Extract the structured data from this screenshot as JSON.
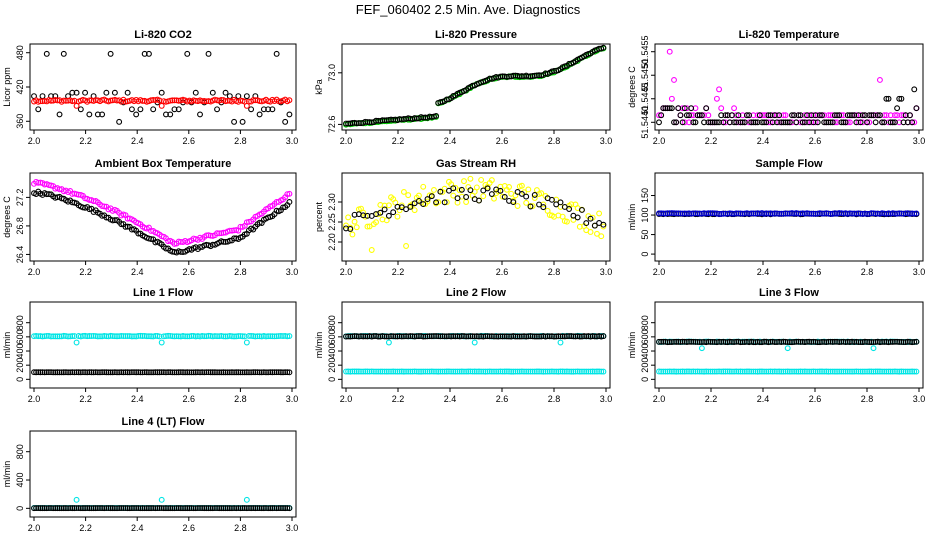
{
  "title": "FEF_060402  2.5 Min. Ave. Diagnostics",
  "chart_data": [
    {
      "type": "scatter",
      "title": "Li-820 CO2",
      "ylabel": "Licor ppm",
      "xlim": [
        2.0,
        3.0
      ],
      "ylim": [
        350,
        490
      ],
      "xticks": [
        "2.0",
        "2.2",
        "2.4",
        "2.6",
        "2.8",
        "3.0"
      ],
      "yticks": [
        "360",
        "420",
        "480"
      ],
      "series": [
        {
          "name": "main",
          "color": "#000000",
          "pattern": "co2_black"
        },
        {
          "name": "alt",
          "color": "#ff0000",
          "pattern": "co2_red"
        }
      ]
    },
    {
      "type": "scatter",
      "title": "Li-820 Pressure",
      "ylabel": "kPa",
      "xlim": [
        2.0,
        3.0
      ],
      "ylim": [
        72.58,
        73.2
      ],
      "xticks": [
        "2.0",
        "2.2",
        "2.4",
        "2.6",
        "2.8",
        "3.0"
      ],
      "yticks": [
        "72.6",
        "73.0"
      ],
      "series": [
        {
          "name": "alt",
          "color": "#00cc00",
          "pattern": "pressure",
          "offset": 0
        },
        {
          "name": "main",
          "color": "#000000",
          "pattern": "pressure",
          "offset": 0.005
        }
      ]
    },
    {
      "type": "scatter",
      "title": "Li-820 Temperature",
      "ylabel": "degrees C",
      "xlim": [
        2.0,
        3.0
      ],
      "ylim": [
        51.5439,
        51.5456
      ],
      "xticks": [
        "2.0",
        "2.2",
        "2.4",
        "2.6",
        "2.8",
        "3.0"
      ],
      "yticks": [
        "51.5440",
        "51.5445",
        "51.5450",
        "51.5455"
      ],
      "series": [
        {
          "name": "alt",
          "color": "#ff00ff",
          "pattern": "temp_magenta"
        },
        {
          "name": "main",
          "color": "#000000",
          "pattern": "temp_black"
        }
      ]
    },
    {
      "type": "scatter",
      "title": "Ambient Box Temperature",
      "ylabel": "degrees C",
      "xlim": [
        2.0,
        3.0
      ],
      "ylim": [
        26.35,
        27.5
      ],
      "xticks": [
        "2.0",
        "2.2",
        "2.4",
        "2.6",
        "2.8",
        "3.0"
      ],
      "yticks": [
        "26.4",
        "26.8",
        "27.2"
      ],
      "series": [
        {
          "name": "alt",
          "color": "#ff00ff",
          "pattern": "ambient_magenta"
        },
        {
          "name": "main",
          "color": "#000000",
          "pattern": "ambient_black"
        }
      ]
    },
    {
      "type": "scatter",
      "title": "Gas Stream RH",
      "ylabel": "percent",
      "xlim": [
        2.0,
        3.0
      ],
      "ylim": [
        2.16,
        2.365
      ],
      "xticks": [
        "2.0",
        "2.2",
        "2.4",
        "2.6",
        "2.8",
        "3.0"
      ],
      "yticks": [
        "2.20",
        "2.25",
        "2.30"
      ],
      "series": [
        {
          "name": "alt",
          "color": "#ffff00",
          "pattern": "rh_yellow"
        },
        {
          "name": "main",
          "color": "#000000",
          "pattern": "rh_black"
        }
      ]
    },
    {
      "type": "scatter",
      "title": "Sample Flow",
      "ylabel": "ml/min",
      "xlim": [
        2.0,
        3.0
      ],
      "ylim": [
        -10,
        200
      ],
      "xticks": [
        "2.0",
        "2.2",
        "2.4",
        "2.6",
        "2.8",
        "3.0"
      ],
      "yticks": [
        "0",
        "50",
        "100",
        "150"
      ],
      "series": [
        {
          "name": "main",
          "color": "#000000",
          "pattern": "flat",
          "level": 103
        },
        {
          "name": "alt",
          "color": "#0000cc",
          "pattern": "flat",
          "level": 104
        }
      ]
    },
    {
      "type": "scatter",
      "title": "Line 1 Flow",
      "ylabel": "ml/min",
      "xlim": [
        2.0,
        3.0
      ],
      "ylim": [
        -80,
        1050
      ],
      "xticks": [
        "2.0",
        "2.2",
        "2.4",
        "2.6",
        "2.8",
        "3.0"
      ],
      "yticks": [
        "0",
        "200",
        "400",
        "600",
        "800"
      ],
      "series": [
        {
          "name": "alt",
          "color": "#00e5e5",
          "pattern": "flat_dips",
          "level": 610,
          "dip": 520
        },
        {
          "name": "main",
          "color": "#000000",
          "pattern": "flat",
          "level": 100
        }
      ]
    },
    {
      "type": "scatter",
      "title": "Line 2 Flow",
      "ylabel": "ml/min",
      "xlim": [
        2.0,
        3.0
      ],
      "ylim": [
        -80,
        1050
      ],
      "xticks": [
        "2.0",
        "2.2",
        "2.4",
        "2.6",
        "2.8",
        "3.0"
      ],
      "yticks": [
        "0",
        "200",
        "400",
        "600",
        "800"
      ],
      "series": [
        {
          "name": "alt",
          "color": "#00e5e5",
          "pattern": "flat_dips",
          "level": 610,
          "dip": 520
        },
        {
          "name": "main",
          "color": "#000000",
          "pattern": "flat",
          "level": 608
        },
        {
          "name": "alt_low",
          "color": "#00e5e5",
          "pattern": "flat",
          "level": 110
        }
      ]
    },
    {
      "type": "scatter",
      "title": "Line 3 Flow",
      "ylabel": "ml/min",
      "xlim": [
        2.0,
        3.0
      ],
      "ylim": [
        -80,
        1050
      ],
      "xticks": [
        "2.0",
        "2.2",
        "2.4",
        "2.6",
        "2.8",
        "3.0"
      ],
      "yticks": [
        "0",
        "200",
        "400",
        "600",
        "800"
      ],
      "series": [
        {
          "name": "alt",
          "color": "#00e5e5",
          "pattern": "flat_dips",
          "level": 530,
          "dip": 440
        },
        {
          "name": "main",
          "color": "#000000",
          "pattern": "flat",
          "level": 528
        },
        {
          "name": "alt_low",
          "color": "#00e5e5",
          "pattern": "flat",
          "level": 110
        }
      ]
    },
    {
      "type": "scatter",
      "title": "Line 4 (LT) Flow",
      "ylabel": "ml/min",
      "xlim": [
        2.0,
        3.0
      ],
      "ylim": [
        -80,
        1050
      ],
      "xticks": [
        "2.0",
        "2.2",
        "2.4",
        "2.6",
        "2.8",
        "3.0"
      ],
      "yticks": [
        "0",
        "400",
        "800"
      ],
      "series": [
        {
          "name": "alt",
          "color": "#00e5e5",
          "pattern": "flat_spikes",
          "level": 5,
          "spike": 120
        },
        {
          "name": "main",
          "color": "#000000",
          "pattern": "flat",
          "level": 3
        }
      ]
    }
  ]
}
